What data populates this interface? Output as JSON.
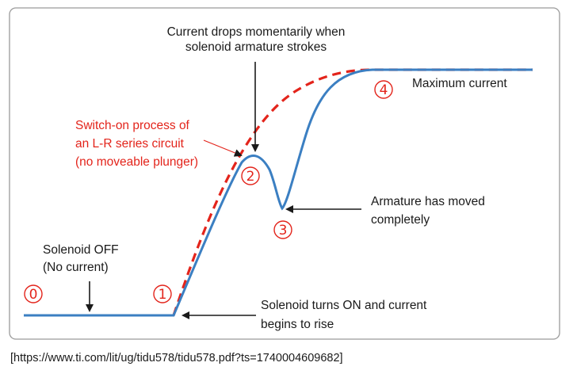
{
  "labels": {
    "current_drops_line1": "Current drops momentarily when",
    "current_drops_line2": "solenoid armature strokes",
    "switch_on_line1": "Switch-on process of",
    "switch_on_line2": "an L-R series circuit",
    "switch_on_line3": "(no moveable plunger)",
    "max_current": "Maximum current",
    "armature_moved_line1": "Armature has moved",
    "armature_moved_line2": "completely",
    "solenoid_off_line1": "Solenoid OFF",
    "solenoid_off_line2": "(No current)",
    "turns_on_line1": "Solenoid turns ON and current",
    "turns_on_line2": "begins to rise"
  },
  "markers": {
    "m0": "0",
    "m1": "1",
    "m2": "2",
    "m3": "3",
    "m4": "4"
  },
  "source": "[https://www.ti.com/lit/ug/tidu578/tidu578.pdf?ts=1740004609682]",
  "colors": {
    "frame": "#9a9a9a",
    "solenoid_curve": "#3b7fc2",
    "lr_curve": "#e3241b",
    "text": "#1a1a1a",
    "marker": "#e3241b"
  }
}
